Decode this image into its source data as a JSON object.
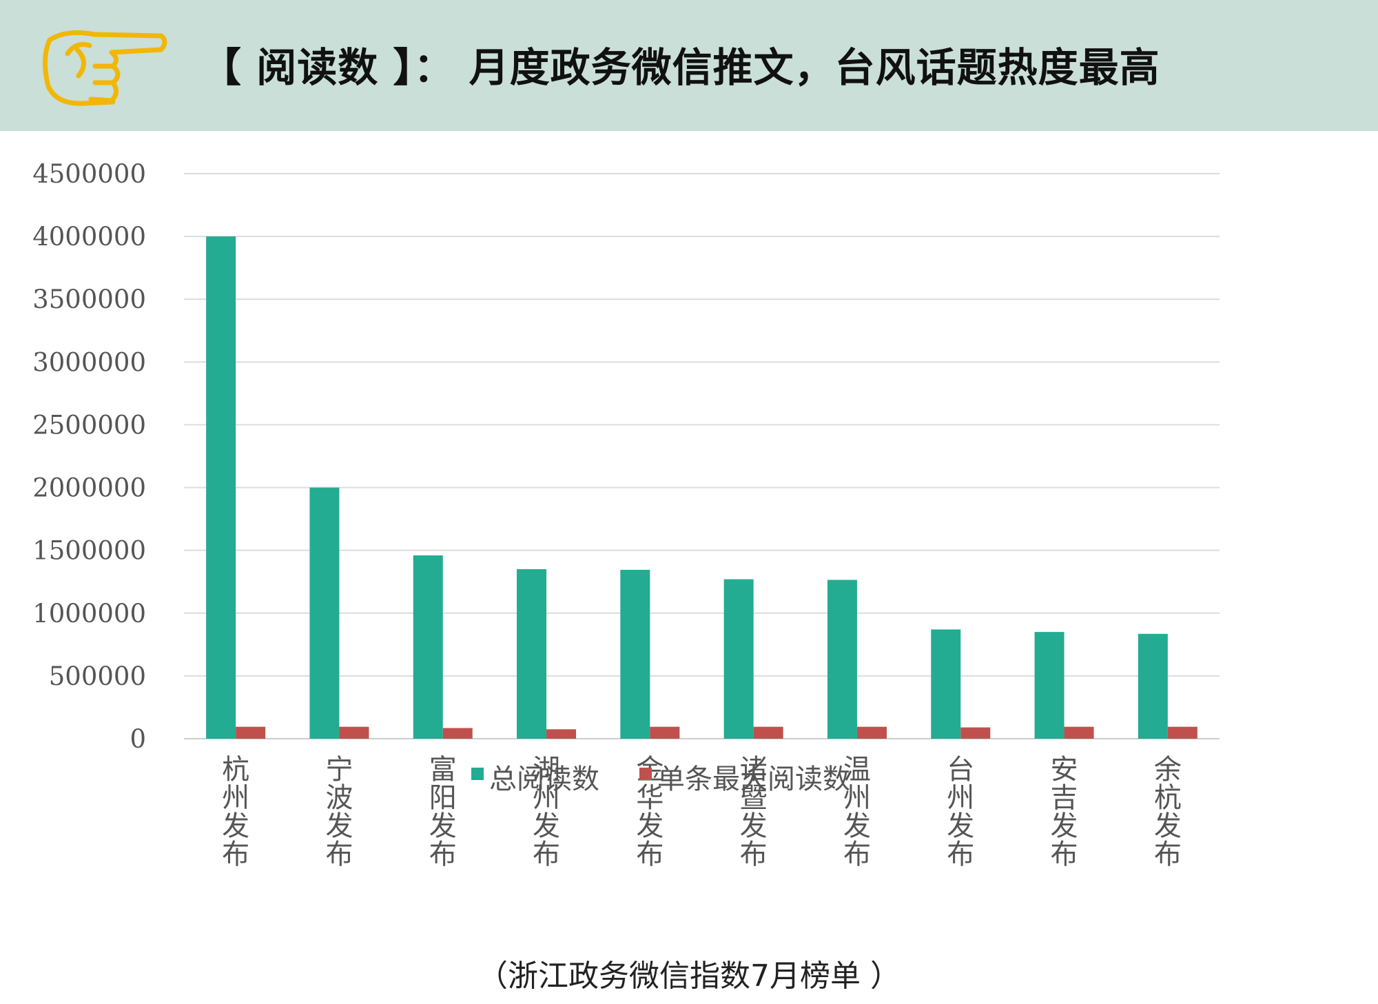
{
  "header": {
    "title": "【 阅读数 】： 月度政务微信推文，台风话题热度最高",
    "icon": "pointing-hand-icon",
    "icon_color": "#f2b705",
    "background": "#c9dfd7"
  },
  "chart_data": {
    "type": "bar",
    "categories": [
      "杭州发布",
      "宁波发布",
      "富阳发布",
      "湖州发布",
      "金华发布",
      "诸暨发布",
      "温州发布",
      "台州发布",
      "安吉发布",
      "余杭发布"
    ],
    "series": [
      {
        "name": "总阅读数",
        "color": "#23ac92",
        "values": [
          4000000,
          2000000,
          1460000,
          1350000,
          1345000,
          1270000,
          1265000,
          870000,
          850000,
          835000
        ]
      },
      {
        "name": "单条最大阅读数",
        "color": "#c0504d",
        "values": [
          95000,
          95000,
          85000,
          75000,
          95000,
          95000,
          95000,
          90000,
          95000,
          95000
        ]
      }
    ],
    "ylim": [
      0,
      4500000
    ],
    "yticks": [
      "0",
      "500000",
      "1000000",
      "1500000",
      "2000000",
      "2500000",
      "3000000",
      "3500000",
      "4000000",
      "4500000"
    ],
    "grid": true,
    "legend_position": "bottom"
  },
  "footnote": "（浙江政务微信指数7月榜单 ）"
}
